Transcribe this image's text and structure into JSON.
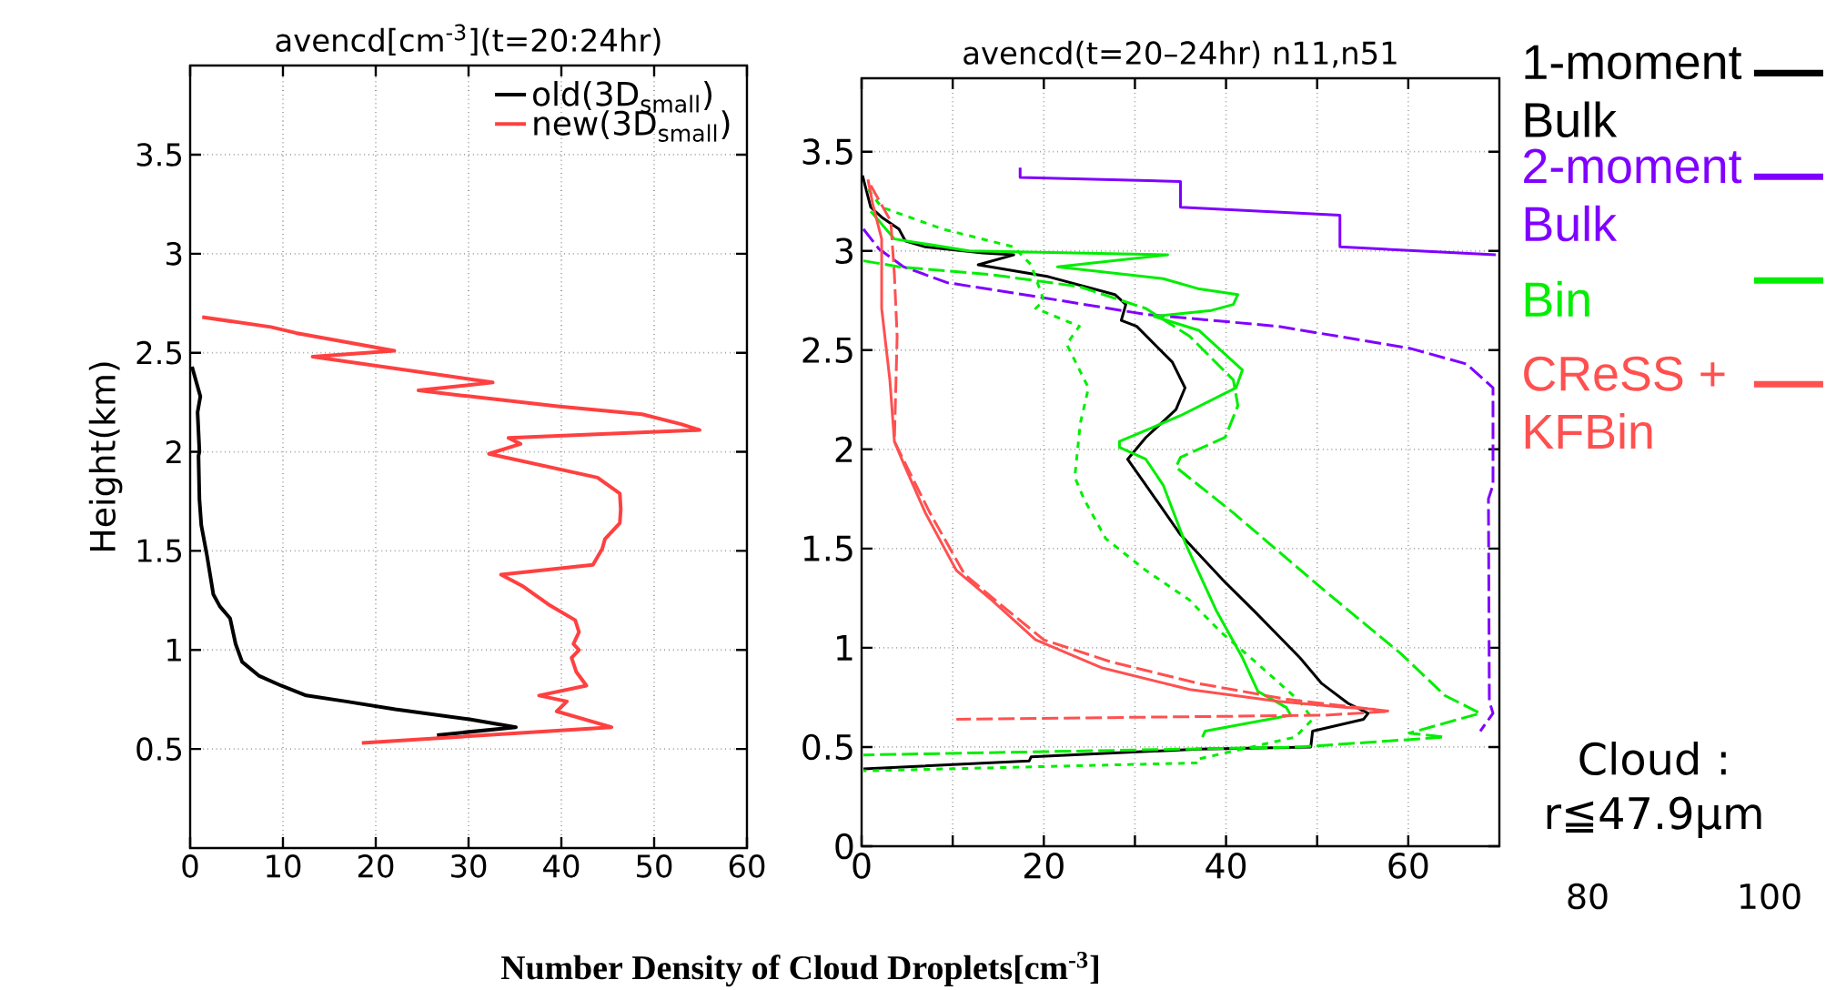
{
  "chart_data": [
    {
      "type": "line",
      "title": "avencd[cm$^{-3}$](t=20:24hr)",
      "xlabel": "Number Density of Cloud Droplets[cm$^{-3}$]",
      "ylabel": "Height(km)",
      "xlim": [
        0,
        60
      ],
      "xticks": [
        0,
        10,
        20,
        30,
        40,
        50,
        60
      ],
      "ylim": [
        0,
        3.95
      ],
      "yticks": [
        0.5,
        1,
        1.5,
        2,
        2.5,
        3,
        3.5
      ],
      "grid": true,
      "legend": "top right",
      "series": [
        {
          "name": "old(3D$_{small}$)",
          "color": "#000000",
          "x": [
            0.2,
            1.1,
            0.8,
            1.0,
            0.9,
            1.0,
            1.2,
            1.8,
            2.5,
            3.2,
            4.3,
            4.9,
            5.6,
            7.4,
            9.8,
            12.5,
            16.8,
            22.1,
            30.1,
            35.1,
            26.6
          ],
          "values": [
            2.43,
            2.28,
            2.2,
            2.0,
            1.98,
            1.76,
            1.63,
            1.48,
            1.28,
            1.22,
            1.16,
            1.03,
            0.94,
            0.87,
            0.82,
            0.77,
            0.74,
            0.7,
            0.65,
            0.61,
            0.57
          ]
        },
        {
          "name": "new(3D$_{small}$)",
          "color": "#ff4040",
          "x": [
            1.3,
            8.7,
            11.4,
            22.0,
            13.2,
            32.6,
            24.6,
            30.1,
            39.6,
            48.7,
            52.9,
            54.9,
            34.3,
            35.6,
            32.2,
            43.9,
            46.3,
            46.4,
            46.3,
            44.7,
            44.4,
            43.4,
            33.5,
            35.9,
            38.6,
            41.5,
            41.9,
            41.3,
            41.9,
            41.1,
            41.6,
            42.7,
            37.6,
            40.6,
            39.5,
            45.4,
            18.5
          ],
          "values": [
            2.68,
            2.63,
            2.6,
            2.51,
            2.48,
            2.35,
            2.31,
            2.28,
            2.23,
            2.19,
            2.14,
            2.11,
            2.07,
            2.04,
            1.99,
            1.87,
            1.79,
            1.71,
            1.64,
            1.56,
            1.51,
            1.43,
            1.38,
            1.32,
            1.23,
            1.15,
            1.09,
            1.03,
            1.0,
            0.96,
            0.89,
            0.82,
            0.77,
            0.74,
            0.69,
            0.61,
            0.53
          ]
        }
      ]
    },
    {
      "type": "line",
      "title": "avencd(t=20–24hr) n11,n51",
      "xlim": [
        0,
        70
      ],
      "xticks": [
        0,
        {
          "value": 10,
          "label": null
        },
        20,
        {
          "value": 30,
          "label": null
        },
        40,
        {
          "value": 50,
          "label": null
        },
        60
      ],
      "ylim": [
        0,
        3.87
      ],
      "yticks": [
        0,
        0.5,
        1,
        1.5,
        2,
        2.5,
        3,
        3.5
      ],
      "grid": true,
      "legend": "right",
      "annotations": [
        "Cloud : r≦47.9μm",
        "80",
        "100"
      ],
      "series": [
        {
          "name": "1-moment Bulk",
          "color": "#000000",
          "line_style": "solid",
          "x": [
            0.1,
            1.0,
            2.2,
            4.1,
            4.8,
            7.0,
            13.3,
            16.7,
            12.8,
            20.5,
            27.8,
            29.0,
            28.5,
            30.2,
            34.1,
            35.5,
            34.5,
            31.2,
            29.2,
            31.2,
            35.0,
            39.9,
            43.2,
            48.1,
            50.5,
            53.4,
            55.6,
            55.1,
            49.5,
            49.3,
            37.0,
            18.6,
            18.4,
            0.2
          ],
          "values": [
            3.38,
            3.22,
            3.17,
            3.11,
            3.05,
            3.02,
            2.99,
            2.98,
            2.93,
            2.87,
            2.78,
            2.73,
            2.65,
            2.62,
            2.44,
            2.31,
            2.2,
            2.06,
            1.95,
            1.82,
            1.57,
            1.33,
            1.18,
            0.95,
            0.82,
            0.72,
            0.67,
            0.64,
            0.58,
            0.5,
            0.49,
            0.45,
            0.43,
            0.39
          ]
        },
        {
          "name": "2-moment Bulk",
          "color": "#8000ff",
          "line_style": "solid",
          "x": [
            17.4,
            17.4,
            35.0,
            35.0,
            52.5,
            52.5,
            69.6
          ],
          "values": [
            3.42,
            3.37,
            3.35,
            3.22,
            3.18,
            3.02,
            2.98
          ]
        },
        {
          "color": "#8000ff",
          "line_style": "dashed",
          "x": [
            0.2,
            1.9,
            4.6,
            9.4,
            19.1,
            31.2,
            45.7,
            60.1,
            66.4,
            69.3,
            69.3,
            68.8,
            68.9,
            69.3,
            67.9
          ],
          "values": [
            3.11,
            3.01,
            2.92,
            2.84,
            2.77,
            2.68,
            2.62,
            2.51,
            2.43,
            2.31,
            1.82,
            1.75,
            0.73,
            0.67,
            0.58
          ]
        },
        {
          "name": "Bin",
          "color": "#00ee00",
          "line_style": "solid",
          "x": [
            1.0,
            3.6,
            11.8,
            33.6,
            21.5,
            33.1,
            36.9,
            41.3,
            40.8,
            38.4,
            32.1,
            37.0,
            41.8,
            41.1,
            35.0,
            28.3,
            28.3,
            31.2,
            33.1,
            35.5,
            38.9,
            41.8,
            43.5,
            46.6,
            47.1,
            37.7,
            37.4
          ],
          "values": [
            3.2,
            3.06,
            3.0,
            2.98,
            2.92,
            2.86,
            2.81,
            2.78,
            2.73,
            2.7,
            2.67,
            2.6,
            2.4,
            2.31,
            2.17,
            2.04,
            2.01,
            1.95,
            1.82,
            1.53,
            1.19,
            0.95,
            0.78,
            0.7,
            0.66,
            0.58,
            0.55
          ]
        },
        {
          "color": "#00ee00",
          "line_style": "dashed",
          "x": [
            0.2,
            4.1,
            14.3,
            23.9,
            31.2,
            36.0,
            40.8,
            41.3,
            39.9,
            35.0,
            34.5,
            40.8,
            50.5,
            59.2,
            64.0,
            67.9,
            60.1,
            64.0,
            48.1,
            0.2
          ],
          "values": [
            2.95,
            2.92,
            2.88,
            2.82,
            2.71,
            2.57,
            2.35,
            2.22,
            2.06,
            1.96,
            1.91,
            1.68,
            1.3,
            0.97,
            0.76,
            0.67,
            0.57,
            0.55,
            0.5,
            0.46
          ]
        },
        {
          "color": "#00ee00",
          "line_style": "dotted",
          "x": [
            0.7,
            2.2,
            8.9,
            16.7,
            18.6,
            20.0,
            19.1,
            23.9,
            22.5,
            24.9,
            24.0,
            23.4,
            24.4,
            26.8,
            31.2,
            36.0,
            39.4,
            43.2,
            48.1,
            49.5,
            47.6,
            37.0,
            37.0,
            0.2
          ],
          "values": [
            3.31,
            3.22,
            3.11,
            3.02,
            2.93,
            2.75,
            2.71,
            2.62,
            2.53,
            2.31,
            2.13,
            1.86,
            1.75,
            1.55,
            1.39,
            1.24,
            1.08,
            0.93,
            0.73,
            0.64,
            0.55,
            0.44,
            0.42,
            0.38
          ]
        },
        {
          "name": "CReSS + KFBin",
          "color": "#ff5050",
          "line_style": "solid",
          "x": [
            0.7,
            1.2,
            2.2,
            2.2,
            3.1,
            3.6,
            4.6,
            7.0,
            10.4,
            14.3,
            19.1,
            26.3,
            36.0,
            45.7,
            52.9,
            56.3
          ],
          "values": [
            3.36,
            3.24,
            3.06,
            2.71,
            2.35,
            2.04,
            1.93,
            1.68,
            1.39,
            1.24,
            1.04,
            0.9,
            0.79,
            0.73,
            0.7,
            0.69
          ]
        },
        {
          "color": "#ff5050",
          "line_style": "dashed",
          "x": [
            1.0,
            3.2,
            3.6,
            3.9,
            3.6,
            5.1,
            7.5,
            11.3,
            15.2,
            20.0,
            27.3,
            37.0,
            46.7,
            58.0,
            50.7,
            10.4
          ],
          "values": [
            3.33,
            3.15,
            2.88,
            2.57,
            2.04,
            1.9,
            1.68,
            1.37,
            1.22,
            1.04,
            0.93,
            0.82,
            0.74,
            0.68,
            0.66,
            0.64
          ]
        }
      ]
    }
  ]
}
